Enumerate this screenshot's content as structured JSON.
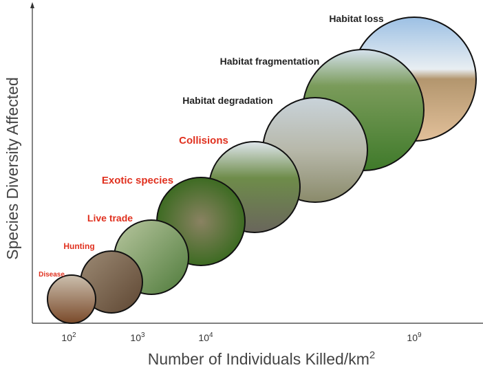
{
  "axes": {
    "y_title": "Species Diversity Affected",
    "x_title": {
      "text": "Number of Individuals Killed/km",
      "superscript": "2"
    },
    "x_ticks": [
      {
        "base": "10",
        "exp": "2"
      },
      {
        "base": "10",
        "exp": "3"
      },
      {
        "base": "10",
        "exp": "4"
      },
      {
        "base": "10",
        "exp": "9"
      }
    ]
  },
  "threats": [
    {
      "label": "Disease",
      "color": "#e0301e"
    },
    {
      "label": "Hunting",
      "color": "#e0301e"
    },
    {
      "label": "Live trade",
      "color": "#e0301e"
    },
    {
      "label": "Exotic species",
      "color": "#e0301e"
    },
    {
      "label": "Collisions",
      "color": "#e0301e"
    },
    {
      "label": "Habitat degradation",
      "color": "#222222"
    },
    {
      "label": "Habitat fragmentation",
      "color": "#222222"
    },
    {
      "label": "Habitat loss",
      "color": "#222222"
    }
  ]
}
